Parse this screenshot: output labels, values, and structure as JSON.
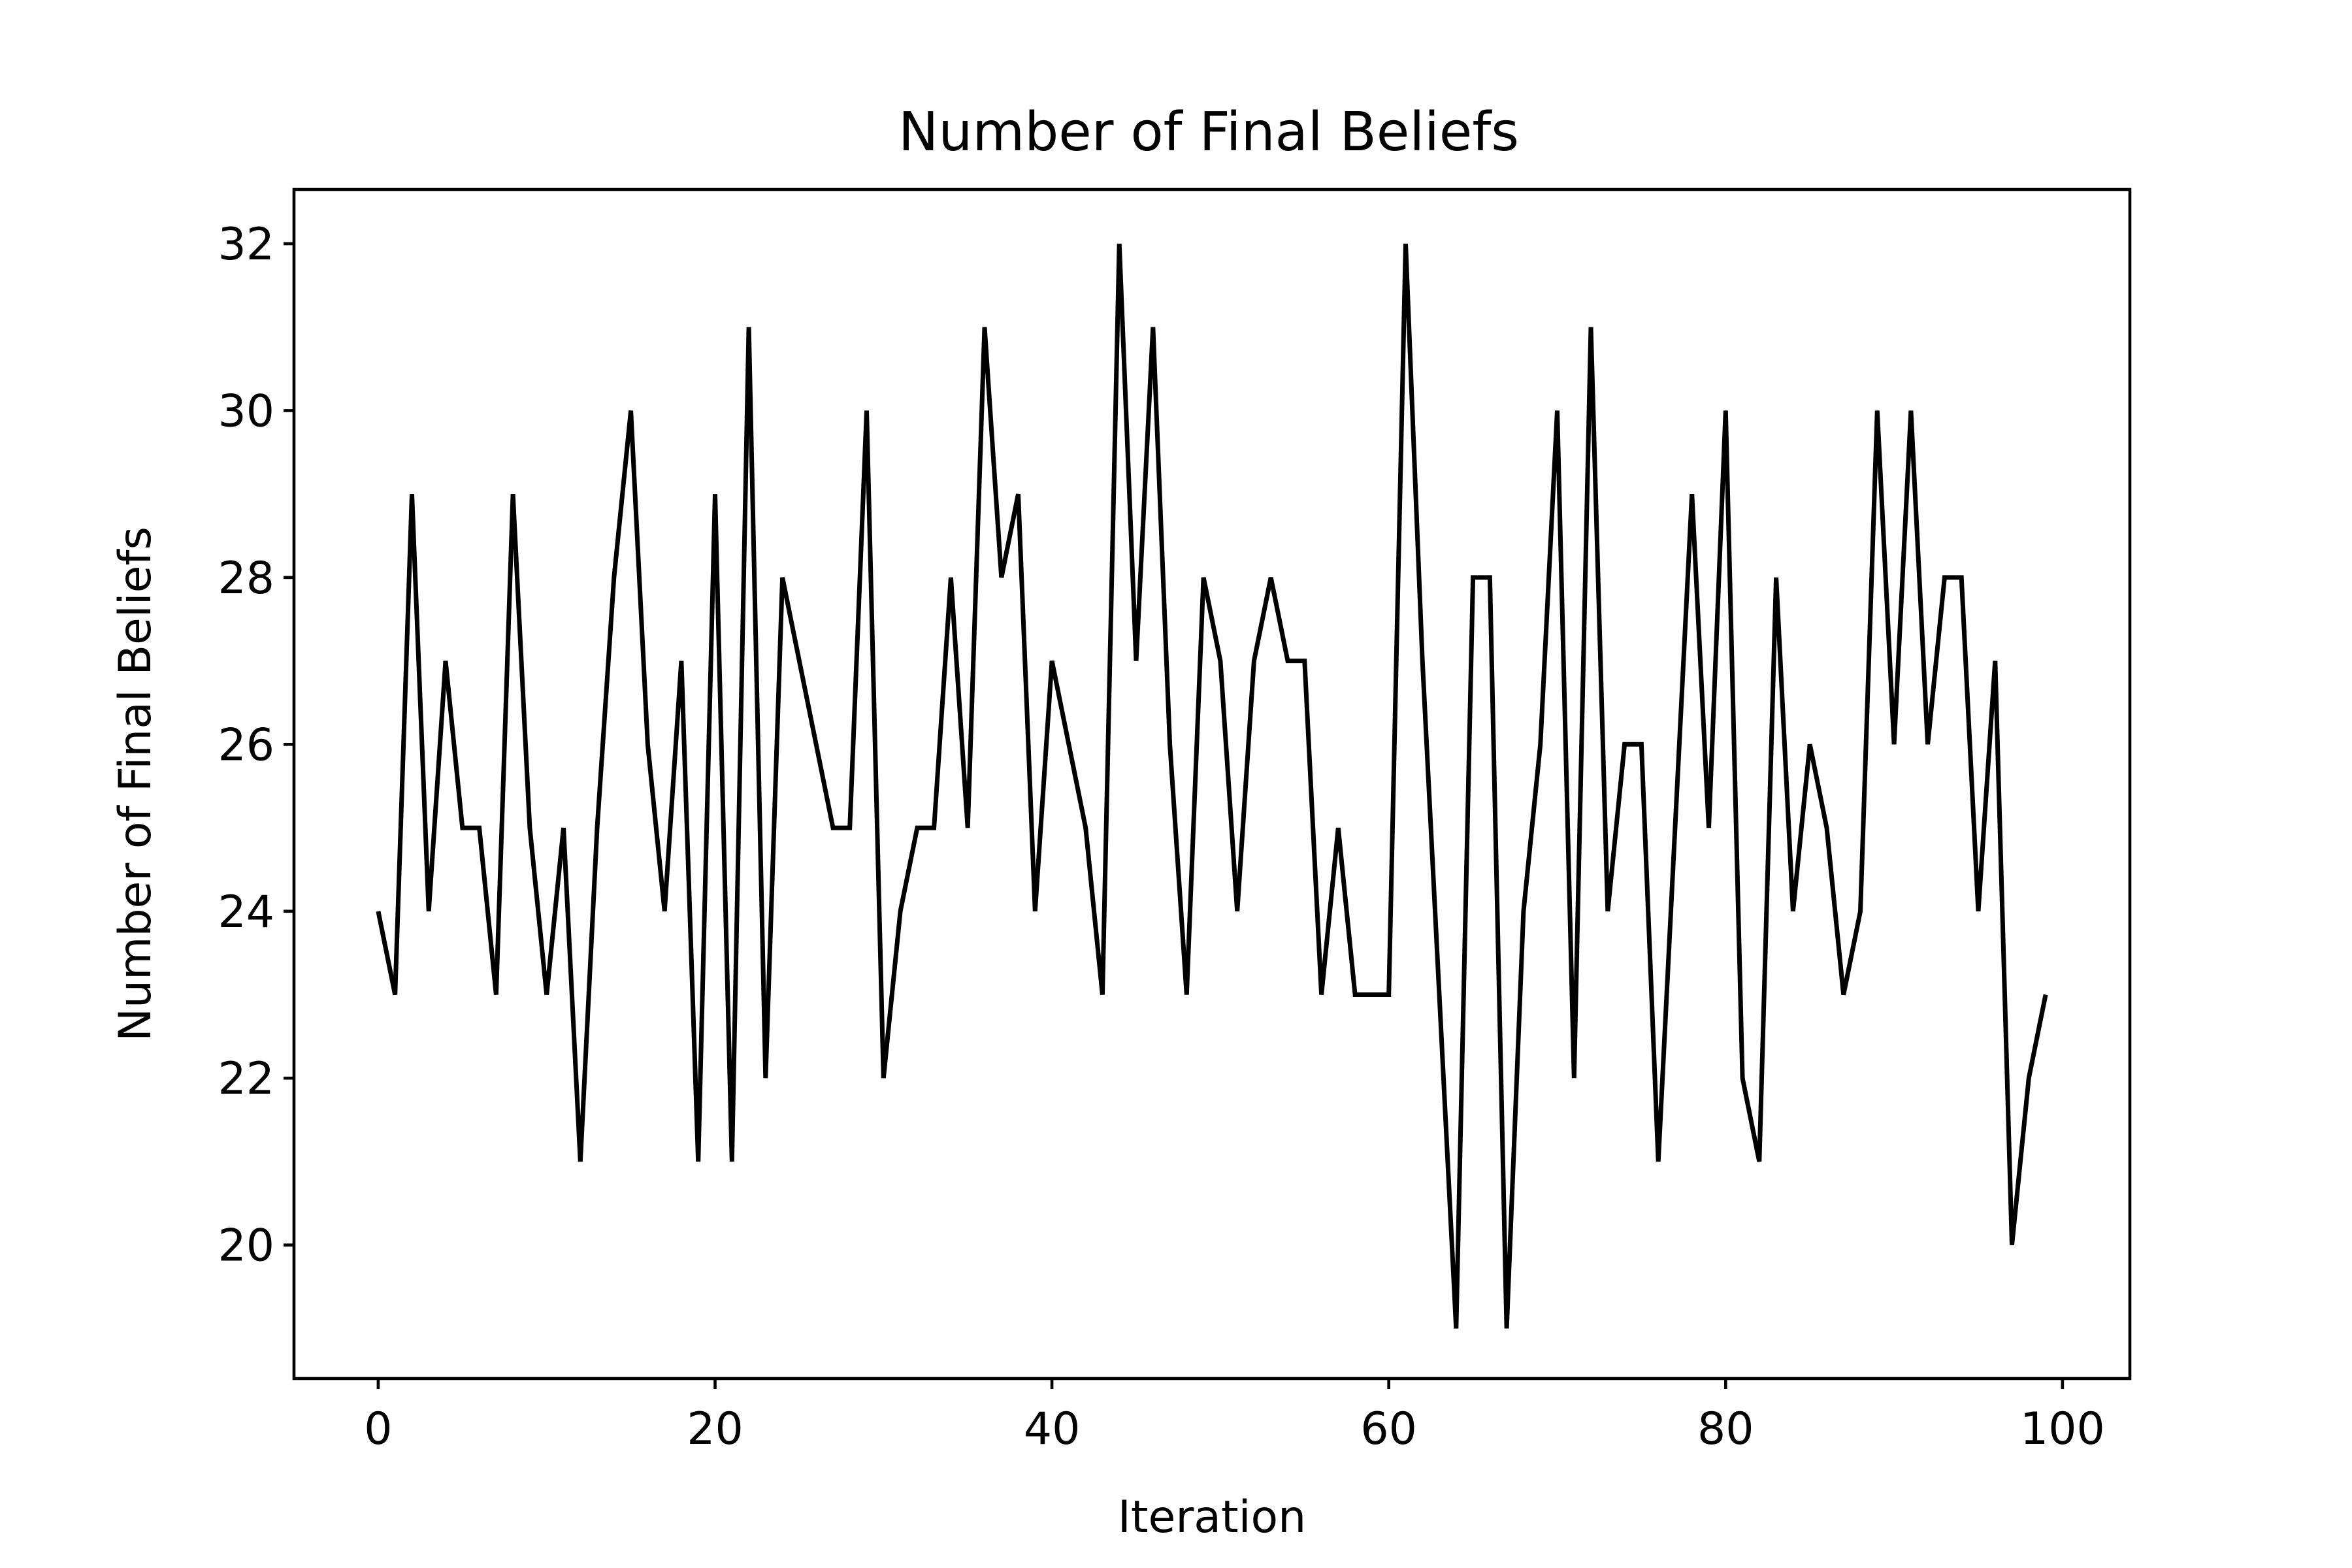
{
  "chart_data": {
    "type": "line",
    "title": "Number of Final Beliefs",
    "xlabel": "Iteration",
    "ylabel": "Number of Final Beliefs",
    "xlim": [
      -5,
      104
    ],
    "ylim": [
      18.4,
      32.65
    ],
    "xticks": [
      0,
      20,
      40,
      60,
      80,
      100
    ],
    "yticks": [
      20,
      22,
      24,
      26,
      28,
      30,
      32
    ],
    "grid": false,
    "legend": "none",
    "line_color": "#000000",
    "series": [
      {
        "x": [
          0,
          1,
          2,
          3,
          4,
          5,
          6,
          7,
          8,
          9,
          10,
          11,
          12,
          13,
          14,
          15,
          16,
          17,
          18,
          19,
          20,
          21,
          22,
          23,
          24,
          25,
          26,
          27,
          28,
          29,
          30,
          31,
          32,
          33,
          34,
          35,
          36,
          37,
          38,
          39,
          40,
          41,
          42,
          43,
          44,
          45,
          46,
          47,
          48,
          49,
          50,
          51,
          52,
          53,
          54,
          55,
          56,
          57,
          58,
          59,
          60,
          61,
          62,
          63,
          64,
          65,
          66,
          67,
          68,
          69,
          70,
          71,
          72,
          73,
          74,
          75,
          76,
          77,
          78,
          79,
          80,
          81,
          82,
          83,
          84,
          85,
          86,
          87,
          88,
          89,
          90,
          91,
          92,
          93,
          94,
          95,
          96,
          97,
          98,
          99
        ],
        "values": [
          24,
          23,
          29,
          24,
          27,
          25,
          25,
          23,
          29,
          25,
          23,
          25,
          21,
          25,
          28,
          30,
          26,
          24,
          27,
          21,
          29,
          21,
          31,
          22,
          28,
          27,
          26,
          25,
          25,
          30,
          22,
          24,
          25,
          25,
          28,
          25,
          31,
          28,
          29,
          24,
          27,
          26,
          25,
          23,
          32,
          27,
          31,
          26,
          23,
          28,
          27,
          24,
          27,
          28,
          27,
          27,
          23,
          25,
          23,
          23,
          23,
          32,
          27,
          23,
          19,
          28,
          28,
          19,
          24,
          26,
          30,
          22,
          31,
          24,
          26,
          26,
          21,
          25,
          29,
          25,
          30,
          22,
          21,
          28,
          24,
          26,
          25,
          23,
          24,
          30,
          26,
          30,
          26,
          28,
          28,
          24,
          27,
          20,
          22,
          23
        ]
      }
    ]
  }
}
